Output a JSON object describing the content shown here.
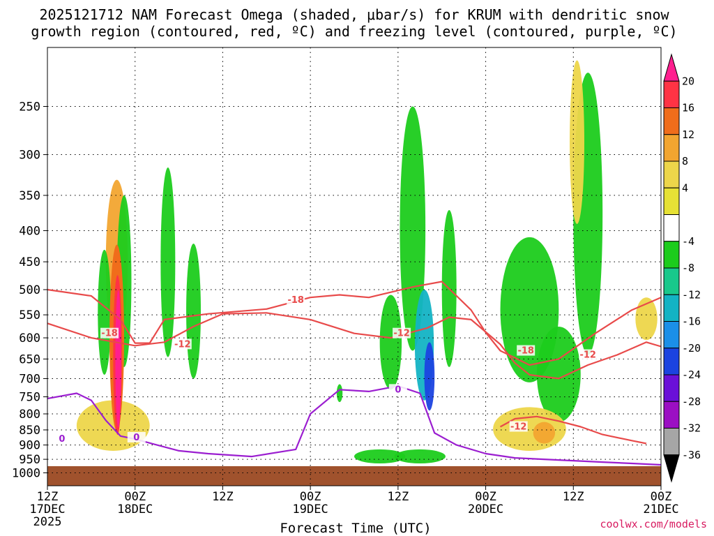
{
  "chart_data": {
    "type": "heatmap",
    "title_line1": "2025121712 NAM Forecast Omega (shaded, μbar/s) for KRUM with dendritic snow",
    "title_line2": "growth region (contoured, red, ºC) and freezing level (contoured, purple, ºC)",
    "xlabel": "Forecast Time (UTC)",
    "credit": "coolwx.com/models",
    "x_ticks": [
      {
        "hour": 0,
        "line1": "12Z",
        "line2": "17DEC",
        "line3": "2025"
      },
      {
        "hour": 12,
        "line1": "00Z",
        "line2": "18DEC",
        "line3": ""
      },
      {
        "hour": 24,
        "line1": "12Z",
        "line2": "",
        "line3": ""
      },
      {
        "hour": 36,
        "line1": "00Z",
        "line2": "19DEC",
        "line3": ""
      },
      {
        "hour": 48,
        "line1": "12Z",
        "line2": "",
        "line3": ""
      },
      {
        "hour": 60,
        "line1": "00Z",
        "line2": "20DEC",
        "line3": ""
      },
      {
        "hour": 72,
        "line1": "12Z",
        "line2": "",
        "line3": ""
      },
      {
        "hour": 84,
        "line1": "00Z",
        "line2": "21DEC",
        "line3": ""
      }
    ],
    "x_range_hours": [
      0,
      84
    ],
    "y_ticks_hpa": [
      250,
      300,
      350,
      400,
      450,
      500,
      550,
      600,
      650,
      700,
      750,
      800,
      850,
      900,
      950,
      1000
    ],
    "y_range_hpa": [
      200,
      1050
    ],
    "y_scale": "log-pressure",
    "grid": true,
    "colorbar": {
      "labels": [
        "20",
        "16",
        "12",
        "8",
        "4",
        "-4",
        "-8",
        "-12",
        "-16",
        "-20",
        "-24",
        "-28",
        "-32",
        "-36"
      ],
      "colors": [
        "#ff1f8f",
        "#ff3344",
        "#f06d1b",
        "#f2a530",
        "#edd64a",
        "#e6e135",
        "#ffffff",
        "#1ccc1c",
        "#19c88b",
        "#13b3c4",
        "#1b8fe8",
        "#1b43e0",
        "#6a10d8",
        "#9b0fc3",
        "#a6a6a6",
        "#000000"
      ]
    },
    "omega_cells": [
      {
        "t": 9.5,
        "p": 470,
        "w": 3.0,
        "h": 280,
        "v": 8
      },
      {
        "t": 10.5,
        "p": 510,
        "w": 2.0,
        "h": 320,
        "v": -6
      },
      {
        "t": 7.8,
        "p": 560,
        "w": 1.8,
        "h": 260,
        "v": -6
      },
      {
        "t": 16.5,
        "p": 480,
        "w": 2.0,
        "h": 330,
        "v": -6
      },
      {
        "t": 20.0,
        "p": 560,
        "w": 2.0,
        "h": 280,
        "v": -6
      },
      {
        "t": 47.0,
        "p": 620,
        "w": 3.0,
        "h": 220,
        "v": -6
      },
      {
        "t": 50.0,
        "p": 440,
        "w": 3.5,
        "h": 380,
        "v": -6
      },
      {
        "t": 51.6,
        "p": 630,
        "w": 2.6,
        "h": 260,
        "v": -12
      },
      {
        "t": 52.3,
        "p": 700,
        "w": 1.4,
        "h": 180,
        "v": -22
      },
      {
        "t": 55.0,
        "p": 520,
        "w": 2.0,
        "h": 300,
        "v": -6
      },
      {
        "t": 66.0,
        "p": 560,
        "w": 8.0,
        "h": 300,
        "v": -6
      },
      {
        "t": 70.0,
        "p": 700,
        "w": 6.0,
        "h": 250,
        "v": -6
      },
      {
        "t": 74.0,
        "p": 430,
        "w": 4.0,
        "h": 420,
        "v": -6
      },
      {
        "t": 66.0,
        "p": 850,
        "w": 10.0,
        "h": 140,
        "v": 6
      },
      {
        "t": 68.0,
        "p": 860,
        "w": 3.0,
        "h": 70,
        "v": 10
      },
      {
        "t": 72.5,
        "p": 300,
        "w": 2.0,
        "h": 180,
        "v": 5
      },
      {
        "t": 82.0,
        "p": 560,
        "w": 3.0,
        "h": 90,
        "v": 5
      },
      {
        "t": 9.0,
        "p": 840,
        "w": 10.0,
        "h": 160,
        "v": 6
      },
      {
        "t": 45.5,
        "p": 940,
        "w": 7.0,
        "h": 50,
        "v": -6
      },
      {
        "t": 51.0,
        "p": 940,
        "w": 7.0,
        "h": 50,
        "v": -6
      },
      {
        "t": 40.0,
        "p": 740,
        "w": 0.8,
        "h": 50,
        "v": -6
      }
    ],
    "dgz_minus12_contour": [
      [
        0,
        568
      ],
      [
        6,
        600
      ],
      [
        12,
        618
      ],
      [
        16,
        610
      ],
      [
        20,
        575
      ],
      [
        24,
        548
      ],
      [
        30,
        546
      ],
      [
        36,
        560
      ],
      [
        42,
        590
      ],
      [
        47,
        600
      ],
      [
        52,
        578
      ],
      [
        55,
        555
      ],
      [
        58,
        560
      ],
      [
        62,
        615
      ],
      [
        64,
        660
      ],
      [
        66,
        690
      ],
      [
        70,
        700
      ],
      [
        74,
        665
      ],
      [
        78,
        640
      ],
      [
        82,
        610
      ],
      [
        84,
        620
      ]
    ],
    "dgz_minus18_contour": [
      [
        0,
        500
      ],
      [
        6,
        512
      ],
      [
        10,
        560
      ],
      [
        12,
        612
      ],
      [
        14,
        612
      ],
      [
        16,
        560
      ],
      [
        22,
        548
      ],
      [
        30,
        538
      ],
      [
        36,
        515
      ],
      [
        40,
        510
      ],
      [
        44,
        515
      ],
      [
        50,
        495
      ],
      [
        54,
        485
      ],
      [
        58,
        540
      ],
      [
        60,
        588
      ],
      [
        62,
        630
      ],
      [
        66,
        665
      ],
      [
        70,
        650
      ],
      [
        75,
        590
      ],
      [
        80,
        540
      ],
      [
        84,
        515
      ]
    ],
    "dgz_lower_contour": [
      [
        62,
        840
      ],
      [
        64,
        815
      ],
      [
        67,
        808
      ],
      [
        70,
        822
      ],
      [
        73,
        840
      ],
      [
        76,
        865
      ],
      [
        80,
        885
      ],
      [
        82,
        895
      ]
    ],
    "freezing_level_contour": [
      [
        0,
        755
      ],
      [
        4,
        740
      ],
      [
        6,
        760
      ],
      [
        8,
        820
      ],
      [
        10,
        870
      ],
      [
        12,
        880
      ],
      [
        15,
        900
      ],
      [
        18,
        920
      ],
      [
        22,
        930
      ],
      [
        28,
        940
      ],
      [
        34,
        915
      ],
      [
        36,
        800
      ],
      [
        40,
        730
      ],
      [
        44,
        735
      ],
      [
        48,
        720
      ],
      [
        51,
        740
      ],
      [
        53,
        860
      ],
      [
        56,
        900
      ],
      [
        60,
        930
      ],
      [
        64,
        945
      ],
      [
        68,
        950
      ],
      [
        72,
        955
      ],
      [
        76,
        960
      ],
      [
        80,
        965
      ],
      [
        84,
        970
      ]
    ],
    "contour_labels": [
      {
        "t": 8.5,
        "p": 590,
        "text": "-18",
        "color": "#e84a4a"
      },
      {
        "t": 18.5,
        "p": 615,
        "text": "-12",
        "color": "#e84a4a"
      },
      {
        "t": 34.0,
        "p": 520,
        "text": "-18",
        "color": "#e84a4a"
      },
      {
        "t": 48.5,
        "p": 590,
        "text": "-12",
        "color": "#e84a4a"
      },
      {
        "t": 65.5,
        "p": 630,
        "text": "-18",
        "color": "#e84a4a"
      },
      {
        "t": 74.0,
        "p": 640,
        "text": "-12",
        "color": "#e84a4a"
      },
      {
        "t": 64.5,
        "p": 840,
        "text": "-12",
        "color": "#e84a4a"
      },
      {
        "t": 2.0,
        "p": 880,
        "text": "0",
        "color": "#9b1ed0"
      },
      {
        "t": 12.2,
        "p": 875,
        "text": "0",
        "color": "#9b1ed0"
      },
      {
        "t": 48.0,
        "p": 730,
        "text": "0",
        "color": "#9b1ed0"
      }
    ],
    "surface_pressure_hpa": 975,
    "surface_color": "#a0522d"
  }
}
